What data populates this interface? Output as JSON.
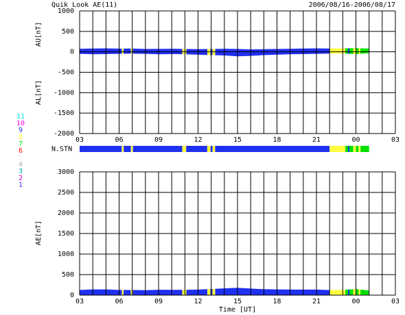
{
  "header": {
    "title": "Quik Look AE(11)",
    "date": "2006/08/16-2006/08/17"
  },
  "station_legend": [
    {
      "count": 11,
      "color": "#00e0e0"
    },
    {
      "count": 10,
      "color": "#ff00ff"
    },
    {
      "count": 9,
      "color": "#2030f0"
    },
    {
      "count": 8,
      "color": "#ffff40"
    },
    {
      "count": 7,
      "color": "#00e000"
    },
    {
      "count": 6,
      "color": "#ff0000"
    },
    {
      "count": 5,
      "color": "#f0f0f0"
    },
    {
      "count": 4,
      "color": "#b0b0b0"
    },
    {
      "count": 3,
      "color": "#00a0a0"
    },
    {
      "count": 2,
      "color": "#c000c0"
    },
    {
      "count": 1,
      "color": "#4040ff"
    }
  ],
  "chart_data": [
    {
      "type": "area",
      "ylabels": [
        "AU[nT]",
        "AL[nT]"
      ],
      "x": [
        3,
        4,
        5,
        6,
        7,
        8,
        9,
        10,
        11,
        12,
        13,
        14,
        15,
        16,
        17,
        18,
        19,
        20,
        21,
        22,
        23,
        24,
        25
      ],
      "series": [
        {
          "values": [
            75,
            80,
            85,
            78,
            80,
            70,
            72,
            75,
            70,
            65,
            70,
            75,
            70,
            60,
            65,
            70,
            75,
            80,
            85,
            80,
            85,
            90,
            80
          ]
        },
        {
          "values": [
            -50,
            -60,
            -55,
            -50,
            -45,
            -50,
            -60,
            -55,
            -60,
            -70,
            -80,
            -90,
            -110,
            -100,
            -80,
            -70,
            -60,
            -55,
            -50,
            -45,
            -40,
            -60,
            -30
          ]
        }
      ],
      "xlim": [
        3,
        27
      ],
      "ylim": [
        -2000,
        1000
      ],
      "xticks": [
        {
          "value": 3,
          "label": "03"
        },
        {
          "value": 6,
          "label": "06"
        },
        {
          "value": 9,
          "label": "09"
        },
        12,
        15,
        18,
        21,
        {
          "value": 24,
          "label": "00"
        },
        {
          "value": 27,
          "label": "03"
        }
      ],
      "xgrid": [
        3,
        4,
        5,
        6,
        7,
        8,
        9,
        10,
        11,
        12,
        13,
        14,
        15,
        16,
        17,
        18,
        19,
        20,
        21,
        22,
        23,
        24,
        25,
        26,
        27
      ],
      "yticks": [
        1000,
        500,
        0,
        -500,
        -1000,
        -1500,
        -2000
      ]
    },
    {
      "type": "segments",
      "label": "N.STN",
      "xlim": [
        3,
        27
      ],
      "segments": [
        {
          "start": 3,
          "end": 6.2,
          "count": 9
        },
        {
          "start": 6.2,
          "end": 6.35,
          "count": 8
        },
        {
          "start": 6.35,
          "end": 6.9,
          "count": 9
        },
        {
          "start": 6.9,
          "end": 7.05,
          "count": 8
        },
        {
          "start": 7.05,
          "end": 10.8,
          "count": 9
        },
        {
          "start": 10.8,
          "end": 11.1,
          "count": 8
        },
        {
          "start": 11.1,
          "end": 12.7,
          "count": 9
        },
        {
          "start": 12.7,
          "end": 12.95,
          "count": 8
        },
        {
          "start": 12.95,
          "end": 13.1,
          "count": 9
        },
        {
          "start": 13.1,
          "end": 13.3,
          "count": 8
        },
        {
          "start": 13.3,
          "end": 22.0,
          "count": 9
        },
        {
          "start": 22.0,
          "end": 23.2,
          "count": 8
        },
        {
          "start": 23.2,
          "end": 23.4,
          "count": 7
        },
        {
          "start": 23.4,
          "end": 23.5,
          "count": 9
        },
        {
          "start": 23.5,
          "end": 23.8,
          "count": 7
        },
        {
          "start": 23.8,
          "end": 24.0,
          "count": 8
        },
        {
          "start": 24.0,
          "end": 24.2,
          "count": 7
        },
        {
          "start": 24.2,
          "end": 24.35,
          "count": 8
        },
        {
          "start": 24.35,
          "end": 25.0,
          "count": 7
        }
      ]
    },
    {
      "type": "area",
      "ylabels": [
        "AE[nT]"
      ],
      "xlabel": "Time [UT]",
      "x": [
        3,
        4,
        5,
        6,
        7,
        8,
        9,
        10,
        11,
        12,
        13,
        14,
        15,
        16,
        17,
        18,
        19,
        20,
        21,
        22,
        23,
        24,
        25
      ],
      "series": [
        {
          "values": [
            125,
            140,
            140,
            128,
            125,
            120,
            132,
            130,
            130,
            135,
            150,
            165,
            180,
            160,
            145,
            140,
            135,
            135,
            135,
            125,
            125,
            150,
            110
          ]
        }
      ],
      "xlim": [
        3,
        27
      ],
      "ylim": [
        0,
        3000
      ],
      "xticks": [
        {
          "value": 3,
          "label": "03"
        },
        {
          "value": 6,
          "label": "06"
        },
        {
          "value": 9,
          "label": "09"
        },
        12,
        15,
        18,
        21,
        {
          "value": 24,
          "label": "00"
        },
        {
          "value": 27,
          "label": "03"
        }
      ],
      "xgrid": [
        3,
        4,
        5,
        6,
        7,
        8,
        9,
        10,
        11,
        12,
        13,
        14,
        15,
        16,
        17,
        18,
        19,
        20,
        21,
        22,
        23,
        24,
        25,
        26,
        27
      ],
      "yticks": [
        3000,
        2500,
        2000,
        1500,
        1000,
        500,
        0
      ]
    }
  ]
}
